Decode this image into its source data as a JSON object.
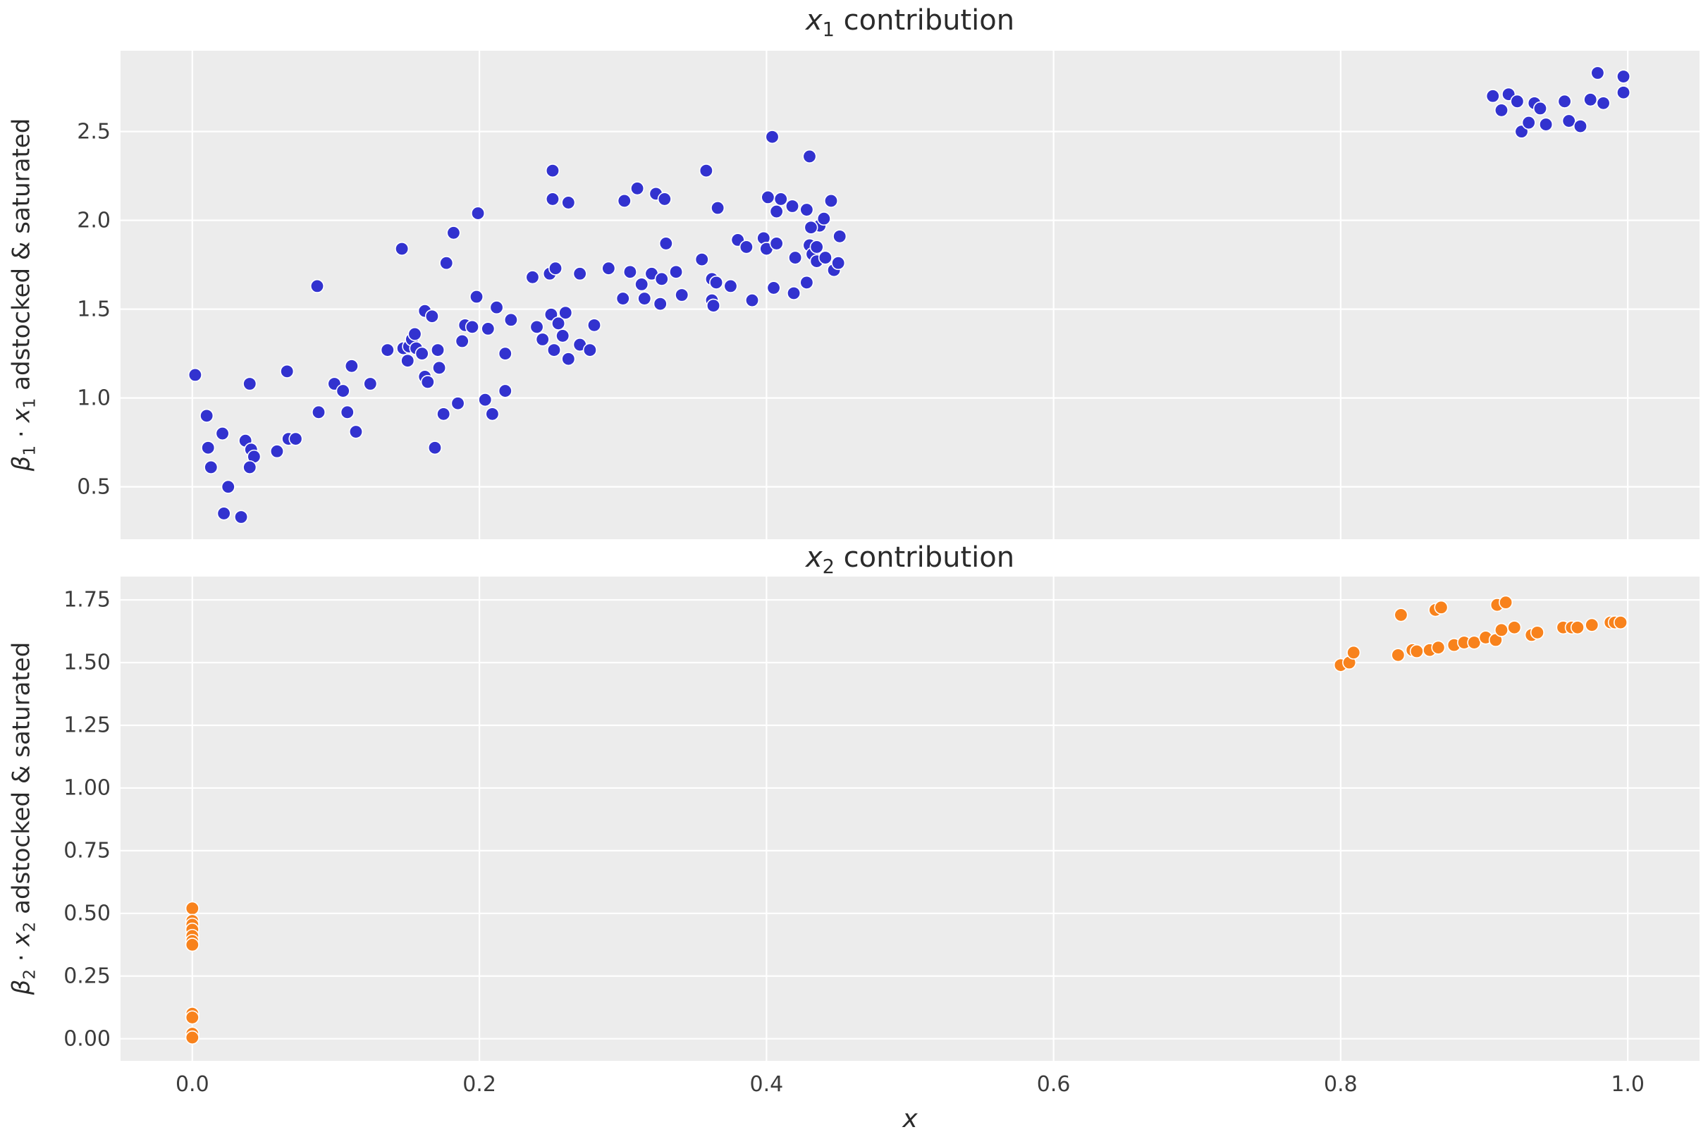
{
  "figure": {
    "xlabel": "x",
    "background_color": "#ececec",
    "grid_color": "#ffffff",
    "text_color": "#2b2b2b"
  },
  "chart_data": [
    {
      "type": "scatter",
      "title_x": "x",
      "title_sub": "1",
      "title_rest": " contribution",
      "ylabel_beta": "β",
      "ylabel_beta_sub": "1",
      "ylabel_dot": " · ",
      "ylabel_x": "x",
      "ylabel_x_sub": "1",
      "ylabel_rest": " adstocked & saturated",
      "color": "#3232cf",
      "marker_edge": "#ffffff",
      "xlim": [
        -0.05,
        1.05
      ],
      "ylim": [
        0.205,
        2.955
      ],
      "x_ticks": [
        0.0,
        0.2,
        0.4,
        0.6,
        0.8,
        1.0
      ],
      "x_tick_labels": [],
      "y_ticks": [
        0.5,
        1.0,
        1.5,
        2.0,
        2.5
      ],
      "y_tick_labels": [
        "0.5",
        "1.0",
        "1.5",
        "2.0",
        "2.5"
      ],
      "grid": true,
      "legend": "none",
      "points": [
        [
          0.002,
          1.13
        ],
        [
          0.01,
          0.9
        ],
        [
          0.021,
          0.8
        ],
        [
          0.011,
          0.72
        ],
        [
          0.037,
          0.76
        ],
        [
          0.04,
          1.08
        ],
        [
          0.041,
          0.71
        ],
        [
          0.043,
          0.67
        ],
        [
          0.013,
          0.61
        ],
        [
          0.04,
          0.61
        ],
        [
          0.025,
          0.5
        ],
        [
          0.022,
          0.35
        ],
        [
          0.034,
          0.33
        ],
        [
          0.059,
          0.7
        ],
        [
          0.067,
          0.77
        ],
        [
          0.072,
          0.77
        ],
        [
          0.066,
          1.15
        ],
        [
          0.087,
          1.63
        ],
        [
          0.088,
          0.92
        ],
        [
          0.099,
          1.08
        ],
        [
          0.105,
          1.04
        ],
        [
          0.108,
          0.92
        ],
        [
          0.111,
          1.18
        ],
        [
          0.114,
          0.81
        ],
        [
          0.124,
          1.08
        ],
        [
          0.136,
          1.27
        ],
        [
          0.146,
          1.84
        ],
        [
          0.147,
          1.28
        ],
        [
          0.15,
          1.21
        ],
        [
          0.151,
          1.29
        ],
        [
          0.153,
          1.33
        ],
        [
          0.155,
          1.36
        ],
        [
          0.156,
          1.28
        ],
        [
          0.16,
          1.25
        ],
        [
          0.162,
          1.49
        ],
        [
          0.167,
          1.46
        ],
        [
          0.162,
          1.12
        ],
        [
          0.164,
          1.09
        ],
        [
          0.169,
          0.72
        ],
        [
          0.171,
          1.27
        ],
        [
          0.172,
          1.17
        ],
        [
          0.175,
          0.91
        ],
        [
          0.177,
          1.76
        ],
        [
          0.182,
          1.93
        ],
        [
          0.185,
          0.97
        ],
        [
          0.188,
          1.32
        ],
        [
          0.19,
          1.41
        ],
        [
          0.195,
          1.4
        ],
        [
          0.198,
          1.57
        ],
        [
          0.199,
          2.04
        ],
        [
          0.204,
          0.99
        ],
        [
          0.206,
          1.39
        ],
        [
          0.209,
          0.91
        ],
        [
          0.212,
          1.51
        ],
        [
          0.218,
          1.04
        ],
        [
          0.218,
          1.25
        ],
        [
          0.222,
          1.44
        ],
        [
          0.24,
          1.4
        ],
        [
          0.237,
          1.68
        ],
        [
          0.249,
          1.7
        ],
        [
          0.253,
          1.73
        ],
        [
          0.25,
          1.47
        ],
        [
          0.255,
          1.42
        ],
        [
          0.26,
          1.48
        ],
        [
          0.251,
          2.28
        ],
        [
          0.251,
          2.12
        ],
        [
          0.262,
          2.1
        ],
        [
          0.244,
          1.33
        ],
        [
          0.252,
          1.27
        ],
        [
          0.258,
          1.35
        ],
        [
          0.262,
          1.22
        ],
        [
          0.27,
          1.3
        ],
        [
          0.277,
          1.27
        ],
        [
          0.27,
          1.7
        ],
        [
          0.28,
          1.41
        ],
        [
          0.29,
          1.73
        ],
        [
          0.3,
          1.56
        ],
        [
          0.301,
          2.11
        ],
        [
          0.31,
          2.18
        ],
        [
          0.323,
          2.15
        ],
        [
          0.329,
          2.12
        ],
        [
          0.305,
          1.71
        ],
        [
          0.313,
          1.64
        ],
        [
          0.315,
          1.56
        ],
        [
          0.32,
          1.7
        ],
        [
          0.326,
          1.53
        ],
        [
          0.327,
          1.67
        ],
        [
          0.33,
          1.87
        ],
        [
          0.337,
          1.71
        ],
        [
          0.341,
          1.58
        ],
        [
          0.355,
          1.78
        ],
        [
          0.358,
          2.28
        ],
        [
          0.362,
          1.67
        ],
        [
          0.362,
          1.55
        ],
        [
          0.363,
          1.52
        ],
        [
          0.365,
          1.65
        ],
        [
          0.366,
          2.07
        ],
        [
          0.375,
          1.63
        ],
        [
          0.38,
          1.89
        ],
        [
          0.386,
          1.85
        ],
        [
          0.39,
          1.55
        ],
        [
          0.398,
          1.9
        ],
        [
          0.4,
          1.84
        ],
        [
          0.401,
          2.13
        ],
        [
          0.404,
          2.47
        ],
        [
          0.405,
          1.62
        ],
        [
          0.407,
          2.05
        ],
        [
          0.407,
          1.87
        ],
        [
          0.41,
          2.12
        ],
        [
          0.418,
          2.08
        ],
        [
          0.419,
          1.59
        ],
        [
          0.42,
          1.79
        ],
        [
          0.428,
          2.06
        ],
        [
          0.428,
          1.65
        ],
        [
          0.43,
          2.36
        ],
        [
          0.43,
          1.86
        ],
        [
          0.432,
          1.81
        ],
        [
          0.435,
          1.77
        ],
        [
          0.441,
          1.79
        ],
        [
          0.437,
          1.97
        ],
        [
          0.431,
          1.96
        ],
        [
          0.44,
          2.01
        ],
        [
          0.445,
          2.11
        ],
        [
          0.451,
          1.91
        ],
        [
          0.447,
          1.72
        ],
        [
          0.45,
          1.76
        ],
        [
          0.435,
          1.85
        ],
        [
          0.906,
          2.7
        ],
        [
          0.912,
          2.62
        ],
        [
          0.917,
          2.71
        ],
        [
          0.923,
          2.67
        ],
        [
          0.926,
          2.5
        ],
        [
          0.931,
          2.55
        ],
        [
          0.935,
          2.66
        ],
        [
          0.939,
          2.63
        ],
        [
          0.943,
          2.54
        ],
        [
          0.956,
          2.67
        ],
        [
          0.959,
          2.56
        ],
        [
          0.967,
          2.53
        ],
        [
          0.974,
          2.68
        ],
        [
          0.979,
          2.83
        ],
        [
          0.983,
          2.66
        ],
        [
          0.997,
          2.81
        ],
        [
          0.997,
          2.72
        ]
      ]
    },
    {
      "type": "scatter",
      "title_x": "x",
      "title_sub": "2",
      "title_rest": " contribution",
      "ylabel_beta": "β",
      "ylabel_beta_sub": "2",
      "ylabel_dot": " · ",
      "ylabel_x": "x",
      "ylabel_x_sub": "2",
      "ylabel_rest": " adstocked & saturated",
      "color": "#f8821c",
      "marker_edge": "#ffffff",
      "xlim": [
        -0.05,
        1.05
      ],
      "ylim": [
        -0.088,
        1.843
      ],
      "x_ticks": [
        0.0,
        0.2,
        0.4,
        0.6,
        0.8,
        1.0
      ],
      "x_tick_labels": [
        "0.0",
        "0.2",
        "0.4",
        "0.6",
        "0.8",
        "1.0"
      ],
      "y_ticks": [
        0.0,
        0.25,
        0.5,
        0.75,
        1.0,
        1.25,
        1.5,
        1.75
      ],
      "y_tick_labels": [
        "0.00",
        "0.25",
        "0.50",
        "0.75",
        "1.00",
        "1.25",
        "1.50",
        "1.75"
      ],
      "grid": true,
      "legend": "none",
      "points": [
        [
          0.0,
          0.52
        ],
        [
          0.0,
          0.47
        ],
        [
          0.0,
          0.455
        ],
        [
          0.0,
          0.435
        ],
        [
          0.0,
          0.41
        ],
        [
          0.0,
          0.39
        ],
        [
          0.0,
          0.375
        ],
        [
          0.0,
          0.1
        ],
        [
          0.0,
          0.085
        ],
        [
          0.0,
          0.02
        ],
        [
          0.0,
          0.005
        ],
        [
          0.8,
          1.49
        ],
        [
          0.806,
          1.5
        ],
        [
          0.809,
          1.54
        ],
        [
          0.842,
          1.69
        ],
        [
          0.84,
          1.53
        ],
        [
          0.85,
          1.55
        ],
        [
          0.853,
          1.545
        ],
        [
          0.862,
          1.55
        ],
        [
          0.868,
          1.56
        ],
        [
          0.866,
          1.71
        ],
        [
          0.87,
          1.72
        ],
        [
          0.879,
          1.57
        ],
        [
          0.886,
          1.58
        ],
        [
          0.893,
          1.58
        ],
        [
          0.901,
          1.6
        ],
        [
          0.908,
          1.59
        ],
        [
          0.909,
          1.73
        ],
        [
          0.915,
          1.74
        ],
        [
          0.912,
          1.63
        ],
        [
          0.921,
          1.64
        ],
        [
          0.933,
          1.61
        ],
        [
          0.937,
          1.62
        ],
        [
          0.955,
          1.64
        ],
        [
          0.961,
          1.64
        ],
        [
          0.965,
          1.64
        ],
        [
          0.975,
          1.65
        ],
        [
          0.988,
          1.66
        ],
        [
          0.991,
          1.66
        ],
        [
          0.995,
          1.66
        ]
      ]
    }
  ]
}
